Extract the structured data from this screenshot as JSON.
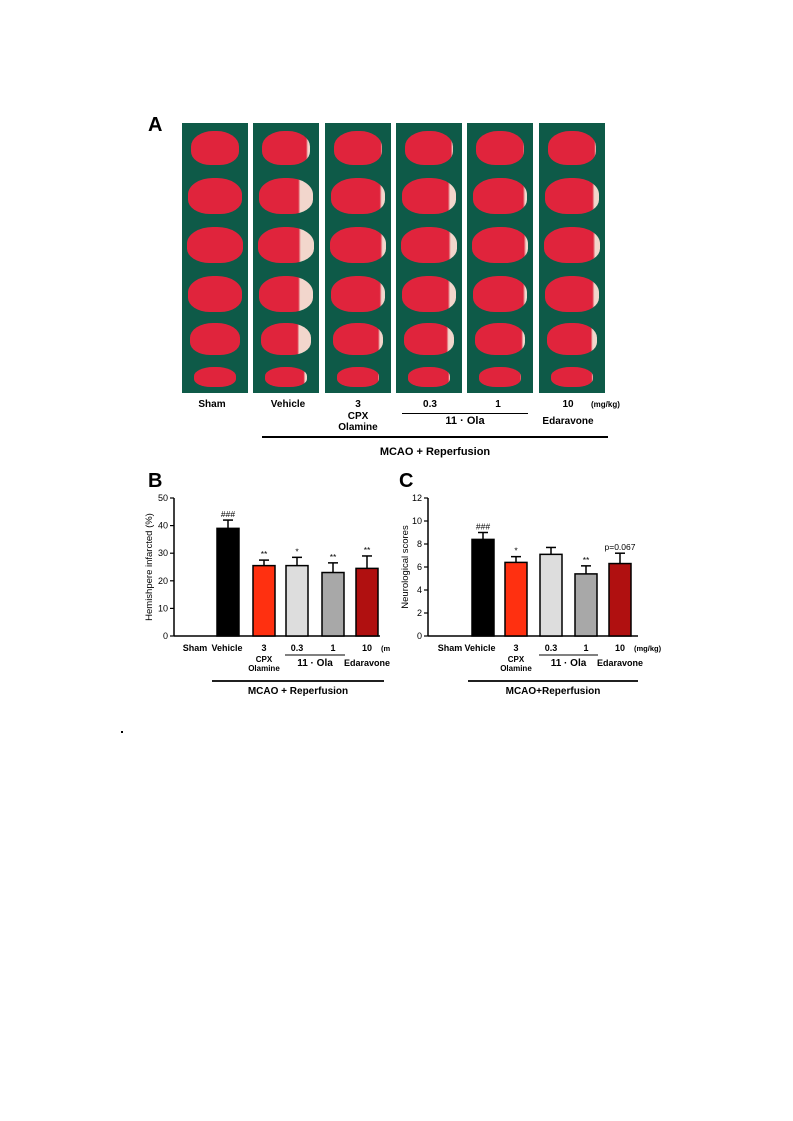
{
  "panel_a": {
    "letter": "A",
    "columns": [
      {
        "label": "Sham"
      },
      {
        "label": "Vehicle"
      },
      {
        "label": "3",
        "sub": "CPX Olamine"
      },
      {
        "label": "0.3"
      },
      {
        "label": "1"
      },
      {
        "label": "10",
        "sub": "Edaravone"
      }
    ],
    "unit": "(mg/kg)",
    "group_label": "11 · Ola",
    "bottom_label": "MCAO + Reperfusion",
    "slice_colors": {
      "healthy": "#e0243c",
      "infarct": "#f2d6cc",
      "background": "#0e5a48"
    }
  },
  "chart_data": [
    {
      "panel": "B",
      "type": "bar",
      "categories": [
        "Sham",
        "Vehicle",
        "3",
        "0.3",
        "1",
        "10"
      ],
      "values": [
        0,
        39,
        25.5,
        25.5,
        23,
        24.5
      ],
      "errors": [
        0,
        3,
        2,
        3,
        3.5,
        4.5
      ],
      "colors": [
        "#000000",
        "#000000",
        "#ff3010",
        "#dddddd",
        "#a8a8a8",
        "#b01010"
      ],
      "annotations": [
        "",
        "###",
        "**",
        "*",
        "**",
        "**"
      ],
      "ylabel": "Hemishpere infarcted (%)",
      "ylim": [
        0,
        50
      ],
      "yticks": [
        0,
        10,
        20,
        30,
        40,
        50
      ],
      "unit": "(mg/kg)",
      "sub_labels": {
        "cpx": "CPX Olamine",
        "ola": "11 · Ola",
        "edaravone": "Edaravone"
      },
      "bottom_label": "MCAO + Reperfusion"
    },
    {
      "panel": "C",
      "type": "bar",
      "categories": [
        "Sham",
        "Vehicle",
        "3",
        "0.3",
        "1",
        "10"
      ],
      "values": [
        0,
        8.4,
        6.4,
        7.1,
        5.4,
        6.3
      ],
      "errors": [
        0,
        0.6,
        0.5,
        0.6,
        0.7,
        0.9
      ],
      "colors": [
        "#000000",
        "#000000",
        "#ff3010",
        "#dddddd",
        "#a8a8a8",
        "#b01010"
      ],
      "annotations": [
        "",
        "###",
        "*",
        "",
        "**",
        "p=0.067"
      ],
      "ylabel": "Neurological scores",
      "ylim": [
        0,
        12
      ],
      "yticks": [
        0,
        2,
        4,
        6,
        8,
        10,
        12
      ],
      "unit": "(mg/kg)",
      "sub_labels": {
        "cpx": "CPX Olamine",
        "ola": "11 · Ola",
        "edaravone": "Edaravone"
      },
      "bottom_label": "MCAO+Reperfusion"
    }
  ]
}
